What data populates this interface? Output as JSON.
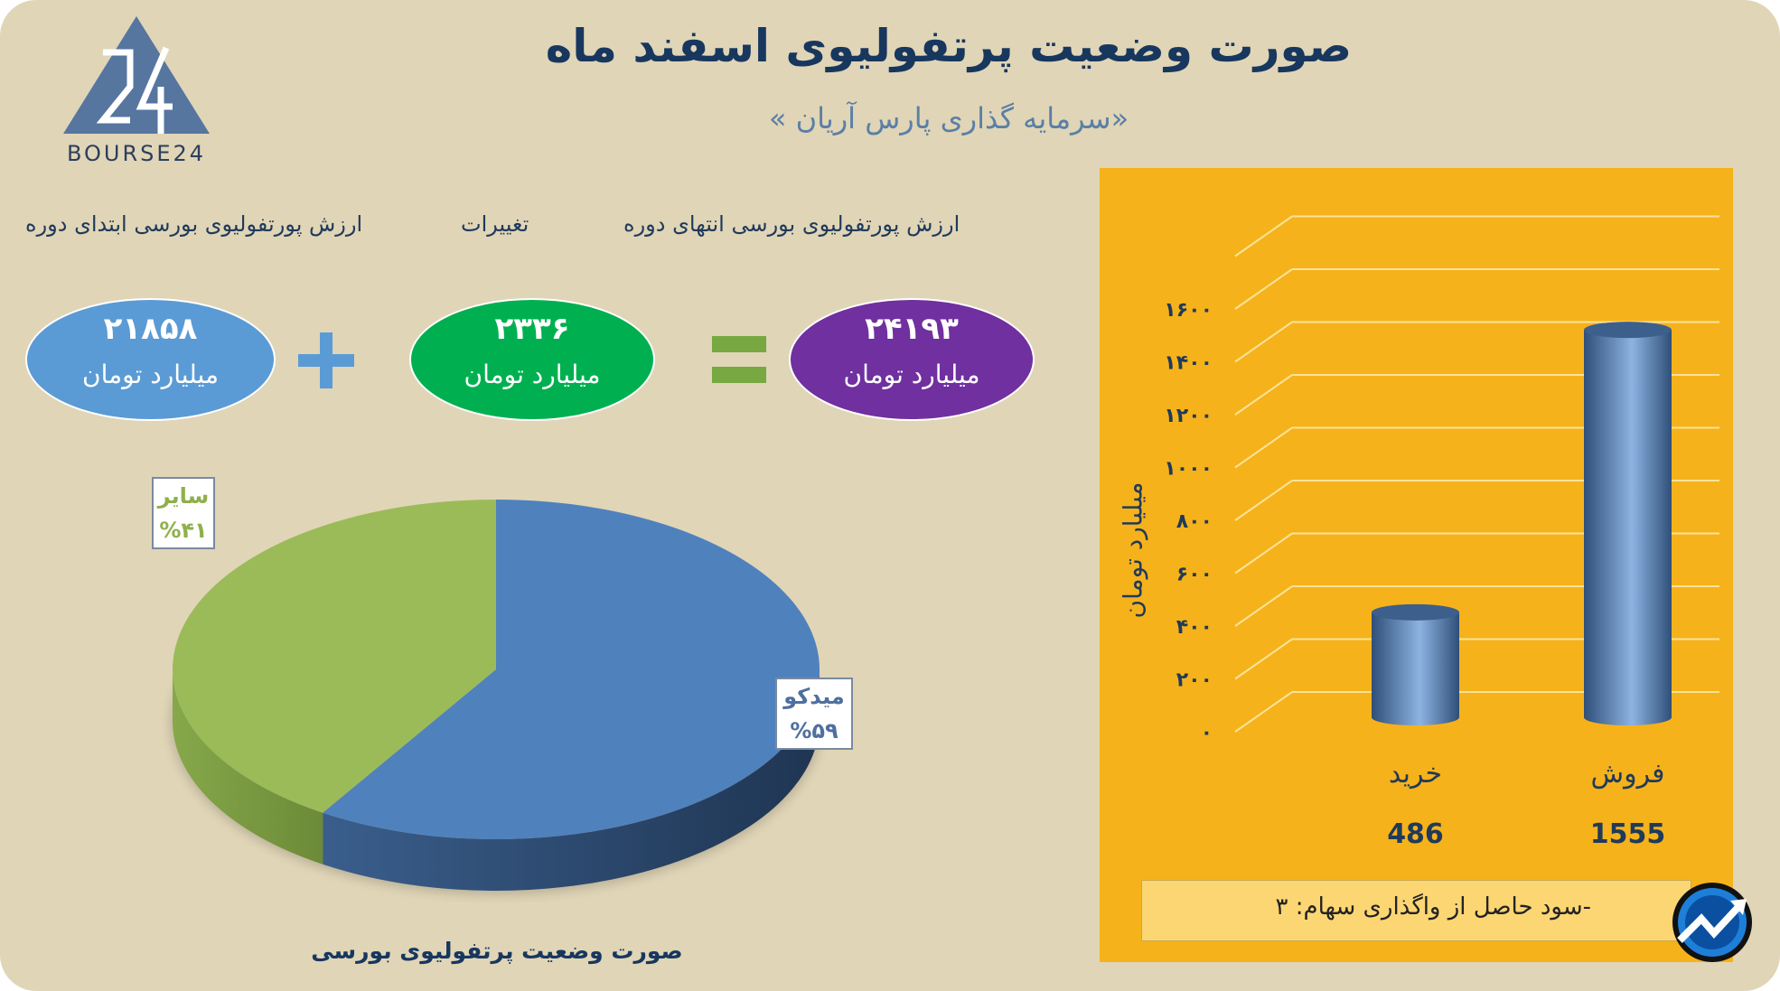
{
  "header": {
    "title": "صورت وضعیت پرتفولیوی اسفند ماه",
    "subtitle": "«سرمایه گذاری پارس آریان »",
    "logo_text": "BOURSE24"
  },
  "equation": {
    "headers": {
      "start": "ارزش پورتفولیوی بورسی ابتدای دوره",
      "change": "تغییرات",
      "end": "ارزش پورتفولیوی بورسی انتهای دوره"
    },
    "start": {
      "value": "۲۱۸۵۸",
      "unit": "میلیارد تومان",
      "color": "#5b9bd5"
    },
    "change": {
      "value": "۲۳۳۶",
      "unit": "میلیارد تومان",
      "color": "#00b050"
    },
    "end": {
      "value": "۲۴۱۹۳",
      "unit": "میلیارد تومان",
      "color": "#7030a0"
    },
    "plus_symbol": "+",
    "equals_symbol": "="
  },
  "chart_data": [
    {
      "type": "pie",
      "title": "صورت وضعیت پرتفولیوی بورسی",
      "slices": [
        {
          "name": "میدکو",
          "value": 59,
          "label": "%۵۹",
          "color": "#4f81bd"
        },
        {
          "name": "سایر",
          "value": 41,
          "label": "%۴۱",
          "color": "#9bbb59"
        }
      ]
    },
    {
      "type": "bar",
      "ylabel": "میلیارد تومان",
      "categories": [
        "خرید",
        "فروش"
      ],
      "values": [
        486,
        1555
      ],
      "value_labels": [
        "486",
        "1555"
      ],
      "ylim": [
        0,
        1800
      ],
      "yticks": [
        {
          "v": 0,
          "t": "۰"
        },
        {
          "v": 200,
          "t": "۲۰۰"
        },
        {
          "v": 400,
          "t": "۴۰۰"
        },
        {
          "v": 600,
          "t": "۶۰۰"
        },
        {
          "v": 800,
          "t": "۸۰۰"
        },
        {
          "v": 1000,
          "t": "۱۰۰۰"
        },
        {
          "v": 1200,
          "t": "۱۲۰۰"
        },
        {
          "v": 1400,
          "t": "۱۴۰۰"
        },
        {
          "v": 1600,
          "t": "۱۶۰۰"
        }
      ],
      "bar_color": "#4f81bd"
    }
  ],
  "note": "-سود حاصل از واگذاری سهام: ۳"
}
